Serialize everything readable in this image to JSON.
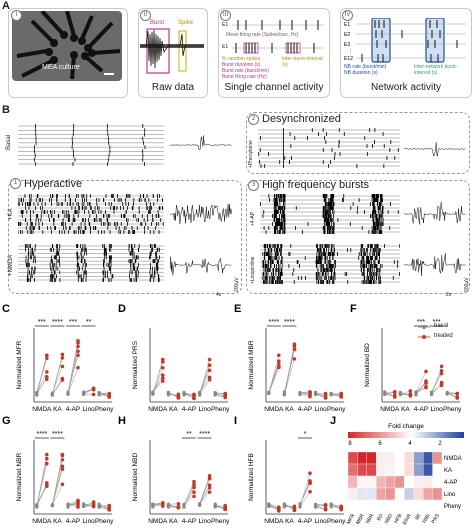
{
  "colors": {
    "basal": "#888888",
    "treated": "#c0392b",
    "nb": "#1f4e9a",
    "nb_green": "#2ea36b",
    "burst": "#c2338c",
    "spike": "#c8c81e"
  },
  "panelA": {
    "letter": "A",
    "sub": [
      {
        "num": "I",
        "caption": "MEA culture"
      },
      {
        "num": "II",
        "caption": "Raw data",
        "burst": "Burst",
        "spike": "Spike"
      },
      {
        "num": "III",
        "caption": "Single channel activity",
        "electrodes": [
          "E1",
          "E1"
        ],
        "mfr": "Mean firing rate (Spikes/sec, Hz)",
        "pct_random": "% random spikes",
        "burst_duration": "Burst duration (s)",
        "burst_rate": "Burst rate (burst/min)",
        "burst_firing": "Burst firing rate (Hz)",
        "ibi": "Inter-burst-interval (s)"
      },
      {
        "num": "IV",
        "caption": "Network activity",
        "electrodes": [
          "E1",
          "E2",
          "E3",
          "E12"
        ],
        "nb_rate": "NB rate (burst/min)",
        "nb_duration": "NB duration (s)",
        "inbi": "Inter-network burst-interval (s)"
      }
    ]
  },
  "panelB": {
    "letter": "B",
    "basal": "Basal",
    "groups": [
      {
        "num": "1",
        "title": "Hyperactive",
        "rows": [
          "+KA",
          "+NMDA"
        ]
      },
      {
        "num": "2",
        "title": "Desynchronized",
        "rows": [
          "+Phenytoine"
        ]
      },
      {
        "num": "3",
        "title": "High frequency bursts",
        "rows": [
          "+4-AP",
          "+Linopirdine"
        ]
      }
    ],
    "scale_time": [
      "4s",
      "2s"
    ],
    "scale_amp": [
      "200µV",
      "200µV"
    ]
  },
  "legend": {
    "basal": "basal",
    "treated": "treated"
  },
  "chart_data": [
    {
      "type": "scatter",
      "letter": "C",
      "ylabel": "Normalized MFR",
      "categories": [
        "NMDA",
        "KA",
        "4-AP",
        "Lino",
        "Pheny"
      ],
      "sig": [
        [
          "NMDA",
          "***"
        ],
        [
          "KA",
          "****"
        ],
        [
          "4-AP",
          "***"
        ],
        [
          "Lino",
          "**"
        ]
      ],
      "treated_max": [
        5.5,
        5.6,
        7.2,
        1.6,
        1.0
      ]
    },
    {
      "type": "scatter",
      "letter": "D",
      "ylabel": "Normalized PRS",
      "categories": [
        "NMDA",
        "KA",
        "4-AP",
        "Lino",
        "Pheny"
      ],
      "sig": [],
      "treated_max": [
        5.0,
        0.9,
        0.9,
        5.0,
        1.0
      ]
    },
    {
      "type": "scatter",
      "letter": "E",
      "ylabel": "Normalized MBR",
      "categories": [
        "NMDA",
        "KA",
        "4-AP",
        "Lino",
        "Pheny"
      ],
      "sig": [
        [
          "NMDA",
          "****"
        ],
        [
          "KA",
          "****"
        ]
      ],
      "treated_max": [
        5.5,
        6.8,
        1.2,
        1.0,
        1.0
      ]
    },
    {
      "type": "scatter",
      "letter": "F",
      "ylabel": "Normalized BD",
      "categories": [
        "NMDA",
        "KA",
        "4-AP",
        "Lino",
        "Pheny"
      ],
      "sig": [
        [
          "4-AP",
          "***"
        ],
        [
          "Lino",
          "***"
        ]
      ],
      "treated_max": [
        1.2,
        1.3,
        3.6,
        4.2,
        1.0
      ]
    },
    {
      "type": "scatter",
      "letter": "G",
      "ylabel": "Normalized NBR",
      "categories": [
        "NMDA",
        "KA",
        "4-AP",
        "Lino",
        "Pheny"
      ],
      "sig": [
        [
          "NMDA",
          "****"
        ],
        [
          "KA",
          "****"
        ]
      ],
      "treated_max": [
        7.0,
        7.0,
        1.6,
        1.4,
        1.0
      ]
    },
    {
      "type": "scatter",
      "letter": "H",
      "ylabel": "Normalized NBD",
      "categories": [
        "NMDA",
        "KA",
        "4-AP",
        "Lino",
        "Pheny"
      ],
      "sig": [
        [
          "4-AP",
          "**"
        ],
        [
          "Lino",
          "****"
        ]
      ],
      "treated_max": [
        1.3,
        1.2,
        3.8,
        4.5,
        1.0
      ]
    },
    {
      "type": "scatter",
      "letter": "I",
      "ylabel": "Normalized HFB",
      "categories": [
        "NMDA",
        "KA",
        "4-AP",
        "Lino",
        "Pheny"
      ],
      "sig": [
        [
          "4-AP",
          "*"
        ]
      ],
      "treated_max": [
        0.8,
        0.9,
        4.8,
        1.1,
        0.9
      ]
    },
    {
      "type": "heatmap",
      "letter": "J",
      "title": "Fold change",
      "scale_ticks": [
        "8",
        "6",
        "4",
        "2"
      ],
      "rows": [
        "NMDA",
        "KA",
        "4-AP",
        "Lino",
        "Pheny"
      ],
      "cols": [
        "MFR",
        "MBR",
        "NBR",
        "BD",
        "NBD",
        "HFB",
        "BSIR",
        "IBI",
        "NIBI",
        "PRS"
      ],
      "values": [
        [
          6,
          7,
          7,
          1.5,
          1.5,
          1,
          2,
          0.6,
          0.3,
          4
        ],
        [
          5,
          6,
          6,
          1.5,
          1.3,
          1,
          2,
          0.6,
          0.3,
          1
        ],
        [
          3,
          1.2,
          1.2,
          3,
          3.5,
          4,
          1,
          1.5,
          1.5,
          1
        ],
        [
          1.5,
          0.9,
          0.9,
          3.5,
          4,
          1,
          0.8,
          2,
          3.5,
          4
        ],
        [
          1,
          1,
          1,
          1,
          1,
          1,
          1,
          1,
          1,
          1
        ]
      ]
    }
  ]
}
